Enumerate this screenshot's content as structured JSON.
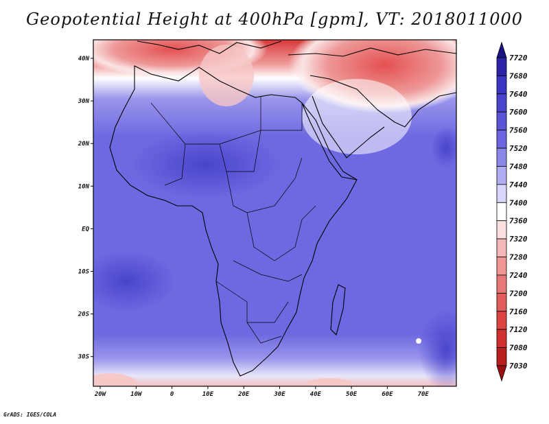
{
  "title": "Geopotential Height at 400hPa [gpm], VT: 2018011000",
  "footer": "GrADS: IGES/COLA",
  "map": {
    "lon_ticks": [
      "20W",
      "10W",
      "0",
      "10E",
      "20E",
      "30E",
      "40E",
      "50E",
      "60E",
      "70E"
    ],
    "lat_ticks": [
      "40N",
      "30N",
      "20N",
      "10N",
      "EQ",
      "10S",
      "20S",
      "30S"
    ]
  },
  "colorbar": {
    "levels": [
      "7720",
      "7680",
      "7640",
      "7600",
      "7560",
      "7520",
      "7480",
      "7440",
      "7400",
      "7360",
      "7320",
      "7280",
      "7240",
      "7200",
      "7160",
      "7120",
      "7080",
      "7030"
    ],
    "colors": [
      "#1a1480",
      "#2a23a8",
      "#3a34c0",
      "#4a44cc",
      "#5a54d6",
      "#6b66e0",
      "#8c88ea",
      "#b0adf2",
      "#d8d6fa",
      "#ffffff",
      "#fbe0e0",
      "#f4b8b8",
      "#ee9696",
      "#e87878",
      "#e25c5c",
      "#dc4444",
      "#d23030",
      "#b81e1e",
      "#9a1010"
    ]
  }
}
